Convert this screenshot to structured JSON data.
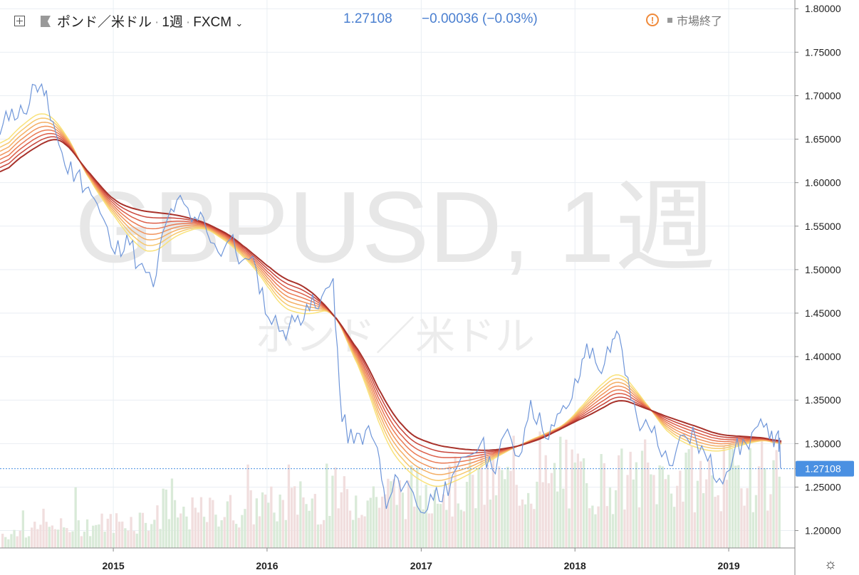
{
  "header": {
    "symbol_name": "ポンド／米ドル",
    "interval": "1週",
    "exchange": "FXCM",
    "last_price": "1.27108",
    "change": "−0.00036 (−0.03%)",
    "market_status": "市場終了",
    "dot": "·"
  },
  "watermark": {
    "line1": "GBPUSD, 1週",
    "line2": "ポンド／米ドル"
  },
  "colors": {
    "price_line": "#6f96d9",
    "ribbon": [
      "#f9e27a",
      "#f7c86e",
      "#f4ae64",
      "#f1945c",
      "#ea7a54",
      "#dc5e48",
      "#c8453a",
      "#a8322b"
    ],
    "volume_up": "#d9ead8",
    "volume_down": "#f1dede",
    "axis_text": "#222222",
    "grid": "#e9eef3",
    "current_price_tag": "#4a90e2"
  },
  "chart_data": {
    "type": "line",
    "x_axis_labels": [
      "2015",
      "2016",
      "2017",
      "2018",
      "2019"
    ],
    "x_range": [
      "2014-04-07",
      "2019-05-06"
    ],
    "ylim": [
      1.18,
      1.81
    ],
    "y_ticks": [
      "1.80000",
      "1.75000",
      "1.70000",
      "1.65000",
      "1.60000",
      "1.55000",
      "1.50000",
      "1.45000",
      "1.40000",
      "1.35000",
      "1.30000",
      "1.27108",
      "1.25000",
      "1.20000"
    ],
    "y_tick_values": [
      1.8,
      1.75,
      1.7,
      1.65,
      1.6,
      1.55,
      1.5,
      1.45,
      1.4,
      1.35,
      1.3,
      1.27108,
      1.25,
      1.2
    ],
    "current_price": 1.27108,
    "series": [
      {
        "kind": "price",
        "points": [
          [
            "2014-04-07",
            1.655
          ],
          [
            "2014-05-05",
            1.685
          ],
          [
            "2014-06-02",
            1.68
          ],
          [
            "2014-06-30",
            1.712
          ],
          [
            "2014-07-21",
            1.7
          ],
          [
            "2014-08-11",
            1.67
          ],
          [
            "2014-09-08",
            1.62
          ],
          [
            "2014-10-06",
            1.61
          ],
          [
            "2014-11-03",
            1.595
          ],
          [
            "2014-12-01",
            1.565
          ],
          [
            "2015-01-05",
            1.518
          ],
          [
            "2015-02-02",
            1.54
          ],
          [
            "2015-03-02",
            1.505
          ],
          [
            "2015-04-06",
            1.48
          ],
          [
            "2015-05-04",
            1.55
          ],
          [
            "2015-06-01",
            1.58
          ],
          [
            "2015-07-06",
            1.555
          ],
          [
            "2015-08-03",
            1.56
          ],
          [
            "2015-09-07",
            1.52
          ],
          [
            "2015-10-05",
            1.535
          ],
          [
            "2015-11-02",
            1.51
          ],
          [
            "2015-12-07",
            1.5
          ],
          [
            "2016-01-04",
            1.445
          ],
          [
            "2016-02-08",
            1.43
          ],
          [
            "2016-03-07",
            1.44
          ],
          [
            "2016-04-04",
            1.46
          ],
          [
            "2016-05-02",
            1.455
          ],
          [
            "2016-06-06",
            1.49
          ],
          [
            "2016-06-27",
            1.325
          ],
          [
            "2016-07-25",
            1.3
          ],
          [
            "2016-08-22",
            1.315
          ],
          [
            "2016-09-19",
            1.295
          ],
          [
            "2016-10-10",
            1.225
          ],
          [
            "2016-11-07",
            1.26
          ],
          [
            "2016-12-05",
            1.25
          ],
          [
            "2017-01-09",
            1.22
          ],
          [
            "2017-02-06",
            1.25
          ],
          [
            "2017-03-06",
            1.24
          ],
          [
            "2017-04-17",
            1.285
          ],
          [
            "2017-05-22",
            1.3
          ],
          [
            "2017-06-19",
            1.27
          ],
          [
            "2017-07-17",
            1.31
          ],
          [
            "2017-08-21",
            1.285
          ],
          [
            "2017-09-18",
            1.35
          ],
          [
            "2017-10-16",
            1.315
          ],
          [
            "2017-11-13",
            1.32
          ],
          [
            "2017-12-11",
            1.34
          ],
          [
            "2018-01-08",
            1.37
          ],
          [
            "2018-01-29",
            1.415
          ],
          [
            "2018-02-26",
            1.385
          ],
          [
            "2018-03-26",
            1.405
          ],
          [
            "2018-04-16",
            1.425
          ],
          [
            "2018-05-14",
            1.35
          ],
          [
            "2018-06-11",
            1.32
          ],
          [
            "2018-07-09",
            1.32
          ],
          [
            "2018-08-13",
            1.275
          ],
          [
            "2018-09-17",
            1.31
          ],
          [
            "2018-10-15",
            1.305
          ],
          [
            "2018-11-12",
            1.28
          ],
          [
            "2018-12-10",
            1.26
          ],
          [
            "2019-01-14",
            1.29
          ],
          [
            "2019-02-11",
            1.3
          ],
          [
            "2019-03-11",
            1.32
          ],
          [
            "2019-04-08",
            1.305
          ],
          [
            "2019-04-29",
            1.315
          ],
          [
            "2019-05-06",
            1.271
          ]
        ]
      },
      {
        "kind": "ma-fast",
        "points": [
          [
            "2014-04-07",
            1.64
          ],
          [
            "2014-06-02",
            1.668
          ],
          [
            "2014-07-21",
            1.684
          ],
          [
            "2014-09-08",
            1.66
          ],
          [
            "2014-11-03",
            1.605
          ],
          [
            "2015-01-05",
            1.56
          ],
          [
            "2015-03-02",
            1.525
          ],
          [
            "2015-04-06",
            1.518
          ],
          [
            "2015-06-01",
            1.54
          ],
          [
            "2015-08-03",
            1.55
          ],
          [
            "2015-10-05",
            1.53
          ],
          [
            "2015-12-07",
            1.5
          ],
          [
            "2016-02-08",
            1.455
          ],
          [
            "2016-04-04",
            1.448
          ],
          [
            "2016-06-06",
            1.455
          ],
          [
            "2016-08-22",
            1.37
          ],
          [
            "2016-10-10",
            1.3
          ],
          [
            "2016-12-05",
            1.265
          ],
          [
            "2017-02-06",
            1.248
          ],
          [
            "2017-04-17",
            1.262
          ],
          [
            "2017-06-19",
            1.282
          ],
          [
            "2017-08-21",
            1.298
          ],
          [
            "2017-10-16",
            1.31
          ],
          [
            "2017-12-11",
            1.322
          ],
          [
            "2018-02-26",
            1.365
          ],
          [
            "2018-04-16",
            1.385
          ],
          [
            "2018-06-11",
            1.352
          ],
          [
            "2018-08-13",
            1.31
          ],
          [
            "2018-10-15",
            1.295
          ],
          [
            "2018-12-10",
            1.29
          ],
          [
            "2019-02-11",
            1.3
          ],
          [
            "2019-04-08",
            1.305
          ],
          [
            "2019-05-06",
            1.296
          ]
        ]
      },
      {
        "kind": "ma-slow",
        "points": [
          [
            "2014-04-07",
            1.608
          ],
          [
            "2014-06-02",
            1.632
          ],
          [
            "2014-08-11",
            1.652
          ],
          [
            "2014-09-08",
            1.648
          ],
          [
            "2014-11-03",
            1.612
          ],
          [
            "2015-01-05",
            1.578
          ],
          [
            "2015-03-02",
            1.568
          ],
          [
            "2015-06-01",
            1.563
          ],
          [
            "2015-08-03",
            1.555
          ],
          [
            "2015-10-05",
            1.54
          ],
          [
            "2015-12-07",
            1.515
          ],
          [
            "2016-02-08",
            1.49
          ],
          [
            "2016-04-04",
            1.48
          ],
          [
            "2016-06-06",
            1.45
          ],
          [
            "2016-08-22",
            1.395
          ],
          [
            "2016-10-10",
            1.345
          ],
          [
            "2016-12-05",
            1.31
          ],
          [
            "2017-02-06",
            1.298
          ],
          [
            "2017-04-17",
            1.293
          ],
          [
            "2017-06-19",
            1.292
          ],
          [
            "2017-08-21",
            1.297
          ],
          [
            "2017-10-16",
            1.306
          ],
          [
            "2017-12-11",
            1.32
          ],
          [
            "2018-02-26",
            1.338
          ],
          [
            "2018-04-16",
            1.352
          ],
          [
            "2018-06-11",
            1.342
          ],
          [
            "2018-08-13",
            1.33
          ],
          [
            "2018-10-15",
            1.32
          ],
          [
            "2018-12-10",
            1.31
          ],
          [
            "2019-02-11",
            1.308
          ],
          [
            "2019-04-08",
            1.306
          ],
          [
            "2019-05-06",
            1.301
          ]
        ]
      }
    ]
  }
}
